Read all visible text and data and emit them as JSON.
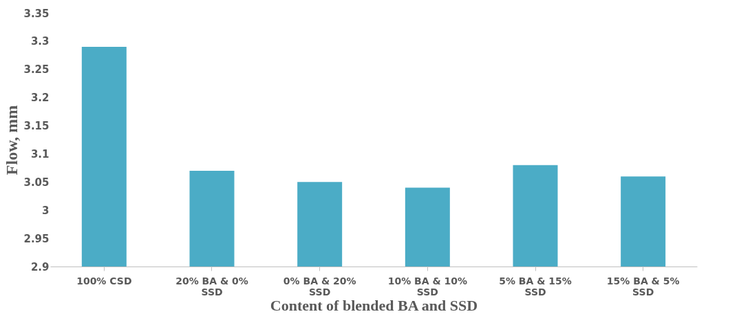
{
  "chart_data": {
    "type": "bar",
    "xlabel": "Content of blended  BA and SSD",
    "ylabel": "Flow, mm",
    "categories": [
      "100% CSD",
      "20% BA & 0% SSD",
      "0% BA & 20% SSD",
      "10% BA & 10% SSD",
      "5% BA & 15% SSD",
      "15% BA & 5% SSD"
    ],
    "values": [
      3.29,
      3.07,
      3.05,
      3.04,
      3.08,
      3.06
    ],
    "color": "#4bacc6",
    "ylim": [
      2.9,
      3.35
    ],
    "yticks": [
      2.9,
      2.95,
      3,
      3.05,
      3.1,
      3.15,
      3.2,
      3.25,
      3.3,
      3.35
    ],
    "grid": false
  }
}
